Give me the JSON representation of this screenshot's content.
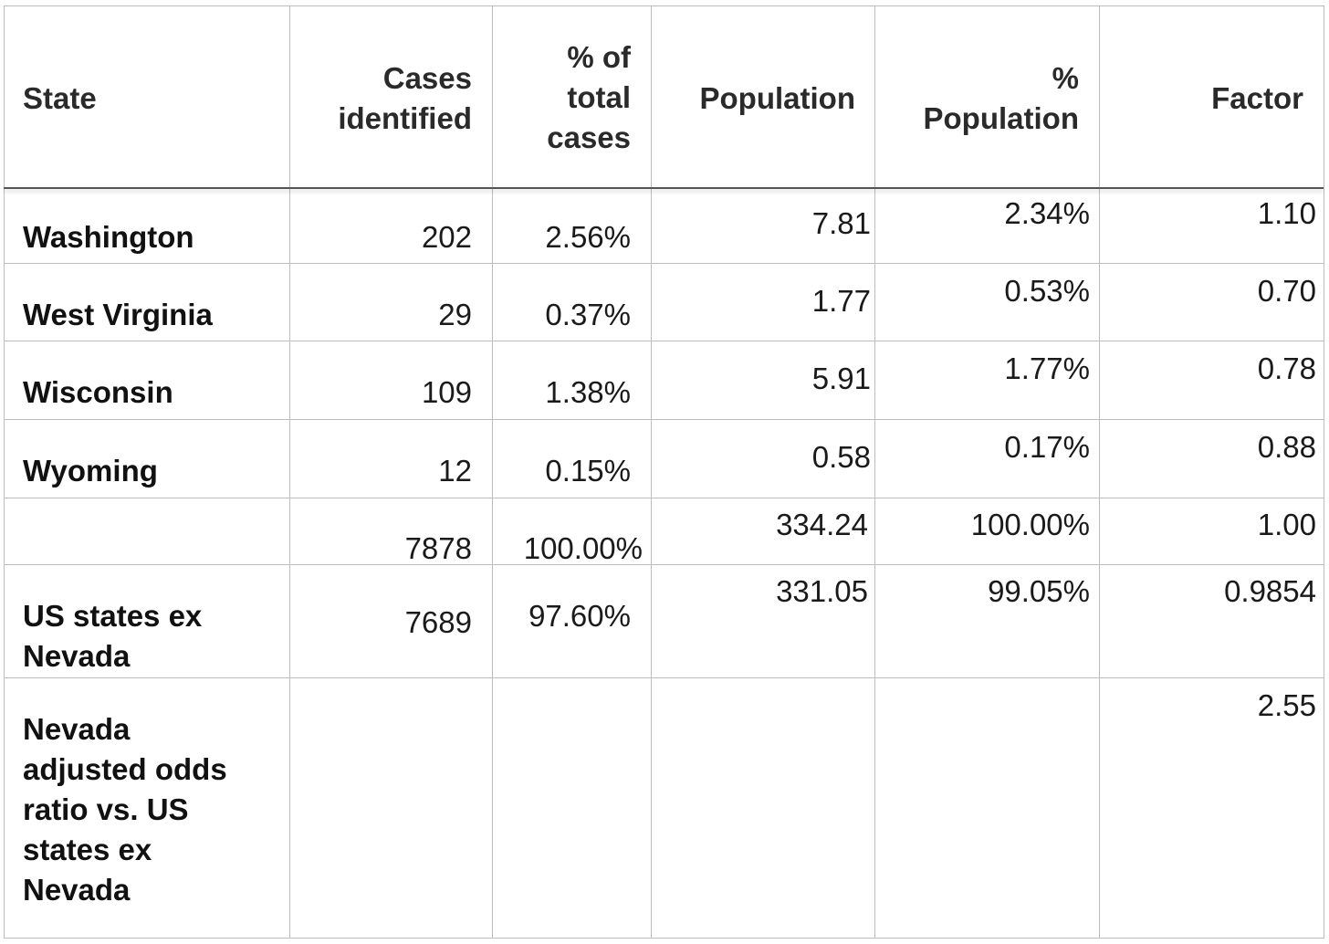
{
  "table": {
    "headers": {
      "state": "State",
      "cases_l1": "Cases",
      "cases_l2": "identified",
      "pct_cases_l1": "% of",
      "pct_cases_l2": "total",
      "pct_cases_l3": "cases",
      "population": "Population",
      "pct_pop_l1": "%",
      "pct_pop_l2": "Population",
      "factor": "Factor"
    },
    "rows": [
      {
        "state": "Washington",
        "cases": "202",
        "pct_cases": "2.56%",
        "population": "7.81",
        "pct_population": "2.34%",
        "factor": "1.10"
      },
      {
        "state": "West Virginia",
        "cases": "29",
        "pct_cases": "0.37%",
        "population": "1.77",
        "pct_population": "0.53%",
        "factor": "0.70"
      },
      {
        "state": "Wisconsin",
        "cases": "109",
        "pct_cases": "1.38%",
        "population": "5.91",
        "pct_population": "1.77%",
        "factor": "0.78"
      },
      {
        "state": "Wyoming",
        "cases": "12",
        "pct_cases": "0.15%",
        "population": "0.58",
        "pct_population": "0.17%",
        "factor": "0.88"
      }
    ],
    "total": {
      "state": "",
      "cases": "7878",
      "pct_cases": "100.00%",
      "population": "334.24",
      "pct_population": "100.00%",
      "factor": "1.00"
    },
    "ex_nevada": {
      "state_l1": "US states ex",
      "state_l2": "Nevada",
      "cases": "7689",
      "pct_cases": "97.60%",
      "population": "331.05",
      "pct_population": "99.05%",
      "factor": "0.9854"
    },
    "nevada_odds": {
      "state_l1": "Nevada",
      "state_l2": "adjusted odds",
      "state_l3": "ratio vs. US",
      "state_l4": "states ex",
      "state_l5": "Nevada",
      "factor": "2.55"
    }
  }
}
